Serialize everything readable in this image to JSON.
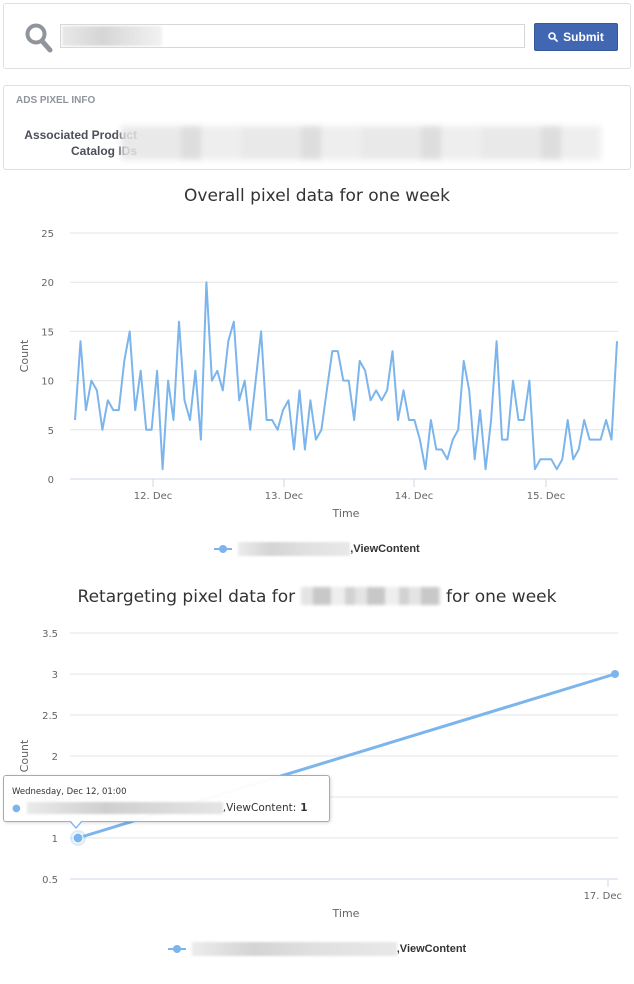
{
  "search": {
    "input_value_redacted": true,
    "submit_label": "Submit",
    "search_icon": "search-icon",
    "submit_icon": "search-icon"
  },
  "ads_pixel_info": {
    "title": "ADS PIXEL INFO",
    "catalog_label_line1": "Associated Product",
    "catalog_label_line2": "Catalog IDs",
    "catalog_ids_redacted": true
  },
  "chart_data": [
    {
      "type": "line",
      "title": "Overall pixel data for one week",
      "xlabel": "Time",
      "ylabel": "Count",
      "ylim": [
        0,
        25
      ],
      "yticks": [
        "0",
        "5",
        "10",
        "15",
        "20",
        "25"
      ],
      "xticks": [
        "12. Dec",
        "13. Dec",
        "14. Dec",
        "15. Dec"
      ],
      "grid": true,
      "legend_position": "bottom",
      "series": [
        {
          "name": "[redacted],ViewContent",
          "color": "#7cb5ec",
          "values": [
            6,
            14,
            7,
            10,
            9,
            5,
            8,
            7,
            7,
            12,
            15,
            7,
            11,
            5,
            5,
            11,
            1,
            10,
            6,
            16,
            8,
            6,
            11,
            4,
            20,
            10,
            11,
            9,
            14,
            16,
            8,
            10,
            5,
            10,
            15,
            6,
            6,
            5,
            7,
            8,
            3,
            9,
            3,
            8,
            4,
            5,
            9,
            13,
            13,
            10,
            10,
            6,
            12,
            11,
            8,
            9,
            8,
            9,
            13,
            6,
            9,
            6,
            6,
            4,
            1,
            6,
            3,
            3,
            2,
            4,
            5,
            12,
            9,
            2,
            7,
            1,
            6,
            14,
            4,
            4,
            10,
            6,
            6,
            10,
            1,
            2,
            2,
            2,
            1,
            2,
            6,
            2,
            3,
            6,
            4,
            4,
            4,
            6,
            4,
            14
          ]
        }
      ]
    },
    {
      "type": "line",
      "title_prefix": "Retargeting pixel data for",
      "title_suffix": "for one week",
      "xlabel": "Time",
      "ylabel": "Count",
      "ylim": [
        0.5,
        3.5
      ],
      "yticks": [
        "0.5",
        "1",
        "1.5",
        "2",
        "2.5",
        "3",
        "3.5"
      ],
      "xticks": [
        "17. Dec"
      ],
      "grid": true,
      "legend_position": "bottom",
      "series": [
        {
          "name": "[redacted],ViewContent",
          "color": "#7cb5ec",
          "x": [
            "Dec 12, 01:00",
            "Dec 17"
          ],
          "values": [
            1,
            3
          ]
        }
      ],
      "tooltip": {
        "header": "Wednesday, Dec 12, 01:00",
        "series_suffix": ",ViewContent:",
        "value": "1"
      }
    }
  ],
  "labels": {
    "legend1_suffix": ",ViewContent",
    "legend2_suffix": ",ViewContent"
  }
}
